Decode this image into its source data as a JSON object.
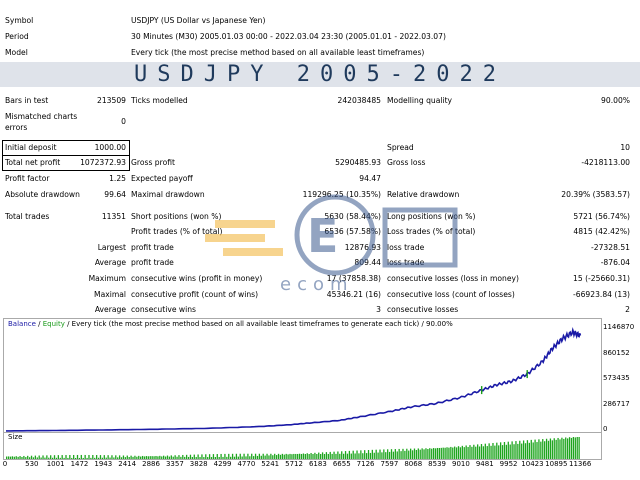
{
  "header": {
    "symbol_label": "Symbol",
    "symbol_value": "USDJPY (US Dollar vs Japanese Yen)",
    "period_label": "Period",
    "period_value": "30 Minutes (M30) 2005.01.03 00:00 - 2022.03.04 23:30 (2005.01.01 - 2022.03.07)",
    "model_label": "Model",
    "model_value": "Every tick (the most precise method based on all available least timeframes)"
  },
  "banner": "USDJPY 2005-2022",
  "stats": {
    "bars_label": "Bars in test",
    "bars_value": "213509",
    "ticks_label": "Ticks modelled",
    "ticks_value": "242038485",
    "quality_label": "Modelling quality",
    "quality_value": "90.00%",
    "mismatch_label": "Mismatched charts errors",
    "mismatch_value": "0",
    "initdep_label": "Initial deposit",
    "initdep_value": "1000.00",
    "spread_label": "Spread",
    "spread_value": "10",
    "netprofit_label": "Total net profit",
    "netprofit_value": "1072372.93",
    "grossprofit_label": "Gross profit",
    "grossprofit_value": "5290485.93",
    "grossloss_label": "Gross loss",
    "grossloss_value": "-4218113.00",
    "pf_label": "Profit factor",
    "pf_value": "1.25",
    "ep_label": "Expected payoff",
    "ep_value": "94.47",
    "absdd_label": "Absolute drawdown",
    "absdd_value": "99.64",
    "maxdd_label": "Maximal drawdown",
    "maxdd_value": "119296.25 (10.35%)",
    "reldd_label": "Relative drawdown",
    "reldd_value": "20.39% (3583.57)",
    "tt_label": "Total trades",
    "tt_value": "11351",
    "short_label": "Short positions (won %)",
    "short_value": "5630 (58.44%)",
    "long_label": "Long positions (won %)",
    "long_value": "5721 (56.74%)",
    "pt_label": "Profit trades (% of total)",
    "pt_value": "6536 (57.58%)",
    "lt_label": "Loss trades (% of total)",
    "lt_value": "4815 (42.42%)",
    "largest_label": "Largest",
    "lpt_label": "profit trade",
    "lpt_value": "12876.93",
    "llt_label": "loss trade",
    "llt_value": "-27328.51",
    "average_label": "Average",
    "apt_label": "profit trade",
    "apt_value": "809.44",
    "alt_label": "loss trade",
    "alt_value": "-876.04",
    "maximum_label": "Maximum",
    "mcw_label": "consecutive wins (profit in money)",
    "mcw_value": "17 (37858.38)",
    "mcl_label": "consecutive losses (loss in money)",
    "mcl_value": "15 (-25660.31)",
    "maximal_label": "Maximal",
    "mcp_label": "consecutive profit (count of wins)",
    "mcp_value": "45346.21 (16)",
    "mclo_label": "consecutive loss (count of losses)",
    "mclo_value": "-66923.84 (13)",
    "average2_label": "Average",
    "acw_label": "consecutive wins",
    "acw_value": "3",
    "acl_label": "consecutive losses",
    "acl_value": "2"
  },
  "chart_legend": {
    "balance": "Balance",
    "sep1": " / ",
    "equity": "Equity",
    "rest": " / Every tick (the most precise method based on all available least timeframes to generate each tick) / 90.00%"
  },
  "size_label": "Size",
  "watermark": {
    "top": "E",
    "bottom": "ecom"
  },
  "colors": {
    "balance": "#1a1aa6",
    "equity": "#1a9a1a",
    "volume": "#1ea51e",
    "banner_text": "#1f3a5c"
  },
  "chart_data": {
    "type": "line",
    "x_ticks": [
      0,
      530,
      1001,
      1472,
      1943,
      2414,
      2886,
      3357,
      3828,
      4299,
      4770,
      5241,
      5712,
      6183,
      6655,
      7126,
      7597,
      8068,
      8539,
      9010,
      9481,
      9952,
      10423,
      10895,
      11366
    ],
    "y_ticks": [
      0,
      286717,
      573435,
      860152,
      1146870
    ],
    "ylim": [
      0,
      1146870
    ],
    "xlim": [
      0,
      11600
    ],
    "series": [
      {
        "name": "Balance",
        "x": [
          0,
          1000,
          2000,
          3000,
          4000,
          5000,
          5600,
          6000,
          6600,
          7000,
          7600,
          8000,
          8500,
          9000,
          9400,
          9700,
          10000,
          10300,
          10600,
          10800,
          11000,
          11200,
          11351
        ],
        "values": [
          1000,
          6000,
          12000,
          20000,
          30000,
          50000,
          70000,
          90000,
          120000,
          160000,
          220000,
          270000,
          310000,
          380000,
          460000,
          520000,
          560000,
          640000,
          780000,
          930000,
          1040000,
          1110000,
          1073373
        ]
      }
    ]
  }
}
